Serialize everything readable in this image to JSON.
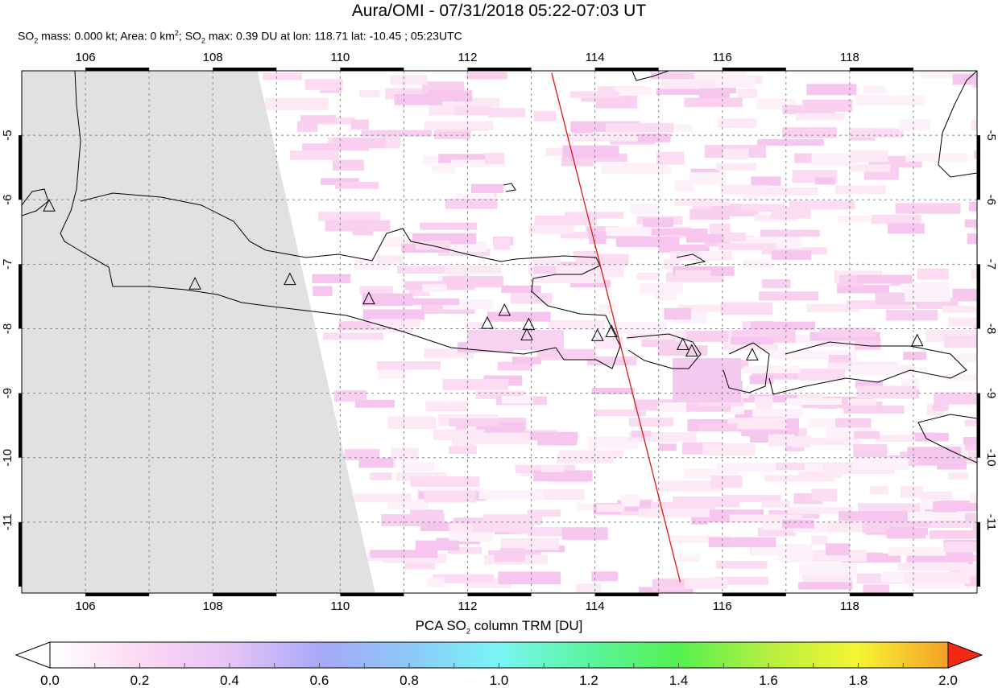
{
  "header": {
    "title": "Aura/OMI - 07/31/2018 05:22-07:03 UT",
    "subtitle_parts": {
      "so2_a": "SO",
      "sub2_a": "2",
      "mass": " mass: 0.000 kt; Area: 0 km",
      "sup2": "2",
      "sep": "; ",
      "so2_b": "SO",
      "sub2_b": "2",
      "max": " max: 0.39 DU at lon: 118.71 lat: -10.45 ; 05:23UTC"
    }
  },
  "map": {
    "lon_range": [
      105,
      120
    ],
    "lat_range": [
      -12.1,
      -4
    ],
    "lon_ticks": [
      106,
      108,
      110,
      112,
      114,
      116,
      118
    ],
    "lat_ticks": [
      -5,
      -6,
      -7,
      -8,
      -9,
      -10,
      -11
    ],
    "grid": "dashed, every 1 degree",
    "no_data_color": "#e1e1e1",
    "orbit_track_color": "#e0190f",
    "orbit_track": [
      [
        113.32,
        -4.03
      ],
      [
        115.34,
        -11.93
      ]
    ],
    "no_data_region": [
      [
        105,
        -4
      ],
      [
        108.7,
        -4
      ],
      [
        110.55,
        -12.1
      ],
      [
        105,
        -12.1
      ]
    ],
    "volcanoes": [
      [
        105.43,
        -6.1
      ],
      [
        107.72,
        -7.31
      ],
      [
        109.21,
        -7.24
      ],
      [
        110.45,
        -7.54
      ],
      [
        112.31,
        -7.92
      ],
      [
        112.58,
        -7.72
      ],
      [
        112.96,
        -7.94
      ],
      [
        112.93,
        -8.1
      ],
      [
        114.04,
        -8.11
      ],
      [
        114.26,
        -8.05
      ],
      [
        115.38,
        -8.25
      ],
      [
        115.52,
        -8.35
      ],
      [
        116.47,
        -8.41
      ],
      [
        119.06,
        -8.19
      ]
    ]
  },
  "colorbar": {
    "title_a": "PCA SO",
    "title_sub": "2",
    "title_b": " column TRM [DU]",
    "range": [
      0,
      2
    ],
    "ticks": [
      "0.0",
      "0.2",
      "0.4",
      "0.6",
      "0.8",
      "1.0",
      "1.2",
      "1.4",
      "1.6",
      "1.8",
      "2.0"
    ],
    "colors": [
      "#ffffff",
      "#fcd9f3",
      "#e6c3f7",
      "#a8a8f7",
      "#8cc8f8",
      "#7af5f5",
      "#5af5a0",
      "#55f050",
      "#b4f040",
      "#f5f532",
      "#f5a028",
      "#f52814"
    ]
  }
}
